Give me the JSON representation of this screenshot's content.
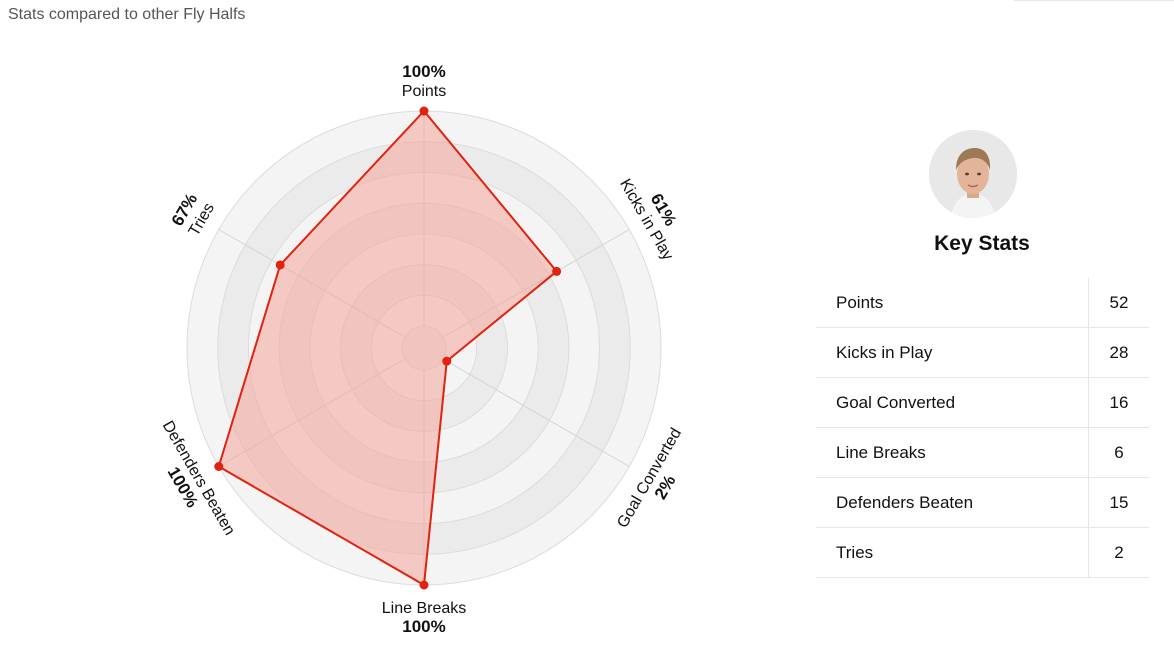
{
  "header": {
    "title": "Stats compared to other Fly Halfs"
  },
  "chart_data": {
    "type": "radar",
    "axes": [
      "Points",
      "Kicks in Play",
      "Goal Converted",
      "Line Breaks",
      "Defenders Beaten",
      "Tries"
    ],
    "values": [
      100,
      61,
      2,
      100,
      100,
      67
    ],
    "value_labels": [
      "100%",
      "61%",
      "2%",
      "100%",
      "100%",
      "67%"
    ],
    "range": [
      0,
      100
    ],
    "rings": 7,
    "colors": {
      "fill": "#f5a59a",
      "line": "#e0220f",
      "ring_light": "#f4f4f4",
      "ring_dark": "#ebebeb"
    }
  },
  "key_stats": {
    "title": "Key Stats",
    "avatar_icon": "player-photo",
    "rows": [
      {
        "label": "Points",
        "value": "52"
      },
      {
        "label": "Kicks in Play",
        "value": "28"
      },
      {
        "label": "Goal Converted",
        "value": "16"
      },
      {
        "label": "Line Breaks",
        "value": "6"
      },
      {
        "label": "Defenders Beaten",
        "value": "15"
      },
      {
        "label": "Tries",
        "value": "2"
      }
    ]
  }
}
